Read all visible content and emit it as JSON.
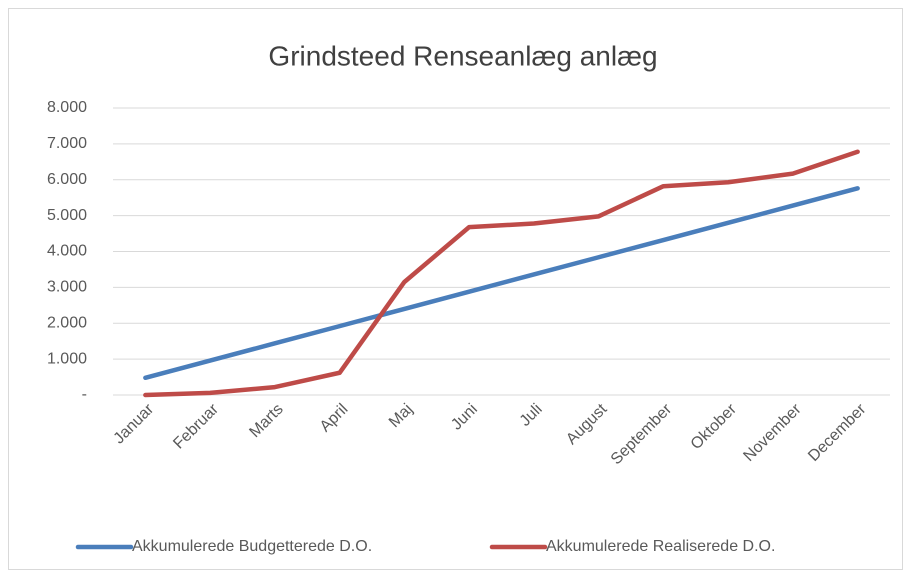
{
  "chart_data": {
    "type": "line",
    "title": "Grindsteed Renseanlæg anlæg",
    "categories": [
      "Januar",
      "Februar",
      "Marts",
      "April",
      "Maj",
      "Juni",
      "Juli",
      "August",
      "September",
      "Oktober",
      "November",
      "December"
    ],
    "series": [
      {
        "name": "Akkumulerede Budgetterede D.O.",
        "color": "#4a7ebb",
        "values": [
          480,
          960,
          1440,
          1920,
          2400,
          2880,
          3360,
          3840,
          4320,
          4800,
          5280,
          5760
        ]
      },
      {
        "name": "Akkumulerede Realiserede D.O.",
        "color": "#be4b48",
        "values": [
          0,
          60,
          220,
          620,
          3150,
          4680,
          4780,
          4980,
          5820,
          5930,
          6170,
          6780
        ]
      }
    ],
    "ylim": [
      0,
      8000
    ],
    "yticks": [
      {
        "value": 0,
        "label": "-"
      },
      {
        "value": 1000,
        "label": "1.000"
      },
      {
        "value": 2000,
        "label": "2.000"
      },
      {
        "value": 3000,
        "label": "3.000"
      },
      {
        "value": 4000,
        "label": "4.000"
      },
      {
        "value": 5000,
        "label": "5.000"
      },
      {
        "value": 6000,
        "label": "6.000"
      },
      {
        "value": 7000,
        "label": "7.000"
      },
      {
        "value": 8000,
        "label": "8.000"
      }
    ],
    "grid": true,
    "legend": "bottom"
  }
}
